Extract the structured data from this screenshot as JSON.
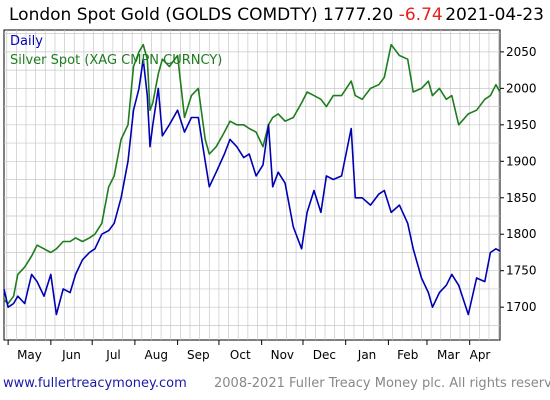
{
  "header": {
    "title": "London Spot Gold (GOLDS COMDTY) 1777.20",
    "change": "-6.74",
    "date": "2021-04-23"
  },
  "footer": {
    "site": "www.fullertreacymoney.com",
    "copyright": "2008-2021 Fuller Treacy Money plc. All rights reserved"
  },
  "colors": {
    "gold": "#0000b4",
    "silver": "#1e7d1e",
    "change": "#e8201c",
    "grid": "#c8c8c8"
  },
  "chart_data": {
    "type": "line",
    "title": "London Spot Gold (GOLDS COMDTY) 1777.20 -6.74",
    "ylim": [
      1655,
      2080
    ],
    "yticks": [
      1700,
      1750,
      1800,
      1850,
      1900,
      1950,
      2000,
      2050
    ],
    "xlim": [
      "2020-04-28",
      "2021-04-23"
    ],
    "month_labels": [
      "May",
      "Jun",
      "Jul",
      "Aug",
      "Sep",
      "Oct",
      "Nov",
      "Dec",
      "Jan",
      "Feb",
      "Mar",
      "Apr"
    ],
    "series": [
      {
        "name": "Daily",
        "color": "#0000b4",
        "x": [
          "2020-04-28",
          "2020-05-01",
          "2020-05-05",
          "2020-05-08",
          "2020-05-13",
          "2020-05-18",
          "2020-05-22",
          "2020-05-27",
          "2020-06-01",
          "2020-06-05",
          "2020-06-10",
          "2020-06-15",
          "2020-06-19",
          "2020-06-24",
          "2020-06-29",
          "2020-07-03",
          "2020-07-08",
          "2020-07-13",
          "2020-07-17",
          "2020-07-22",
          "2020-07-27",
          "2020-07-31",
          "2020-08-04",
          "2020-08-07",
          "2020-08-10",
          "2020-08-12",
          "2020-08-14",
          "2020-08-18",
          "2020-08-21",
          "2020-08-26",
          "2020-09-01",
          "2020-09-06",
          "2020-09-11",
          "2020-09-16",
          "2020-09-21",
          "2020-09-24",
          "2020-09-29",
          "2020-10-05",
          "2020-10-09",
          "2020-10-14",
          "2020-10-19",
          "2020-10-23",
          "2020-10-28",
          "2020-11-02",
          "2020-11-06",
          "2020-11-09",
          "2020-11-13",
          "2020-11-18",
          "2020-11-24",
          "2020-11-30",
          "2020-12-04",
          "2020-12-09",
          "2020-12-14",
          "2020-12-18",
          "2020-12-23",
          "2020-12-29",
          "2021-01-05",
          "2021-01-08",
          "2021-01-13",
          "2021-01-19",
          "2021-01-25",
          "2021-01-29",
          "2021-02-03",
          "2021-02-09",
          "2021-02-15",
          "2021-02-19",
          "2021-02-25",
          "2021-03-02",
          "2021-03-05",
          "2021-03-10",
          "2021-03-15",
          "2021-03-19",
          "2021-03-24",
          "2021-03-31",
          "2021-04-06",
          "2021-04-12",
          "2021-04-16",
          "2021-04-20",
          "2021-04-23"
        ],
        "y": [
          1725,
          1700,
          1705,
          1715,
          1705,
          1745,
          1735,
          1715,
          1745,
          1690,
          1725,
          1720,
          1745,
          1765,
          1775,
          1780,
          1800,
          1805,
          1815,
          1850,
          1900,
          1970,
          2000,
          2040,
          1990,
          1920,
          1950,
          2000,
          1935,
          1950,
          1970,
          1940,
          1960,
          1960,
          1900,
          1865,
          1885,
          1910,
          1930,
          1920,
          1905,
          1910,
          1880,
          1895,
          1950,
          1865,
          1885,
          1870,
          1810,
          1780,
          1830,
          1860,
          1830,
          1880,
          1875,
          1880,
          1945,
          1850,
          1850,
          1840,
          1855,
          1860,
          1830,
          1840,
          1815,
          1780,
          1740,
          1720,
          1700,
          1720,
          1730,
          1745,
          1730,
          1690,
          1740,
          1735,
          1775,
          1780,
          1777
        ]
      },
      {
        "name": "Silver Spot (XAG CMPN CURNCY)",
        "color": "#1e7d1e",
        "x": [
          "2020-04-28",
          "2020-05-01",
          "2020-05-05",
          "2020-05-08",
          "2020-05-13",
          "2020-05-18",
          "2020-05-22",
          "2020-05-27",
          "2020-06-01",
          "2020-06-05",
          "2020-06-10",
          "2020-06-15",
          "2020-06-19",
          "2020-06-24",
          "2020-06-29",
          "2020-07-03",
          "2020-07-08",
          "2020-07-13",
          "2020-07-17",
          "2020-07-22",
          "2020-07-27",
          "2020-07-31",
          "2020-08-04",
          "2020-08-07",
          "2020-08-10",
          "2020-08-12",
          "2020-08-14",
          "2020-08-18",
          "2020-08-21",
          "2020-08-26",
          "2020-09-01",
          "2020-09-06",
          "2020-09-11",
          "2020-09-16",
          "2020-09-21",
          "2020-09-24",
          "2020-09-29",
          "2020-10-05",
          "2020-10-09",
          "2020-10-14",
          "2020-10-19",
          "2020-10-23",
          "2020-10-28",
          "2020-11-02",
          "2020-11-06",
          "2020-11-09",
          "2020-11-13",
          "2020-11-18",
          "2020-11-24",
          "2020-11-30",
          "2020-12-04",
          "2020-12-09",
          "2020-12-14",
          "2020-12-18",
          "2020-12-23",
          "2020-12-29",
          "2021-01-05",
          "2021-01-08",
          "2021-01-13",
          "2021-01-19",
          "2021-01-25",
          "2021-01-29",
          "2021-02-03",
          "2021-02-09",
          "2021-02-15",
          "2021-02-19",
          "2021-02-25",
          "2021-03-02",
          "2021-03-05",
          "2021-03-10",
          "2021-03-15",
          "2021-03-19",
          "2021-03-24",
          "2021-03-31",
          "2021-04-06",
          "2021-04-12",
          "2021-04-16",
          "2021-04-20",
          "2021-04-23"
        ],
        "y": [
          1710,
          1705,
          1715,
          1745,
          1755,
          1770,
          1785,
          1780,
          1775,
          1780,
          1790,
          1790,
          1795,
          1790,
          1795,
          1800,
          1815,
          1865,
          1880,
          1930,
          1950,
          2030,
          2050,
          2060,
          2040,
          1970,
          1980,
          2020,
          2040,
          2030,
          2045,
          1960,
          1990,
          2000,
          1930,
          1910,
          1920,
          1940,
          1955,
          1950,
          1950,
          1945,
          1940,
          1920,
          1950,
          1960,
          1965,
          1955,
          1960,
          1980,
          1995,
          1990,
          1985,
          1975,
          1990,
          1990,
          2010,
          1990,
          1985,
          2000,
          2005,
          2015,
          2060,
          2045,
          2040,
          1995,
          2000,
          2010,
          1990,
          2000,
          1985,
          1990,
          1950,
          1965,
          1970,
          1985,
          1990,
          2005,
          1995
        ]
      }
    ]
  }
}
